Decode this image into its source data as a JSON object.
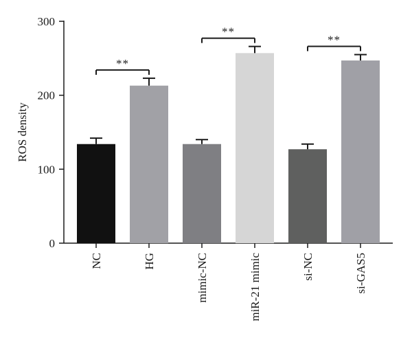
{
  "chart_data": {
    "type": "bar",
    "title": "",
    "xlabel": "",
    "ylabel": "ROS density",
    "ylim": [
      0,
      300
    ],
    "yticks": [
      0,
      100,
      200,
      300
    ],
    "grid": false,
    "categories": [
      "NC",
      "HG",
      "mimic-NC",
      "miR-21 mimic",
      "si-NC",
      "si-GAS5"
    ],
    "values": [
      134,
      213,
      134,
      257,
      127,
      247
    ],
    "errors": [
      8,
      10,
      6,
      9,
      7,
      8
    ],
    "bar_colors": [
      "#111111",
      "#a1a1a6",
      "#7f7f83",
      "#d6d6d6",
      "#5f605f",
      "#a0a0a6"
    ],
    "significance": [
      {
        "from": "NC",
        "to": "HG",
        "label": "**"
      },
      {
        "from": "mimic-NC",
        "to": "miR-21 mimic",
        "label": "**"
      },
      {
        "from": "si-NC",
        "to": "si-GAS5",
        "label": "**"
      }
    ]
  }
}
